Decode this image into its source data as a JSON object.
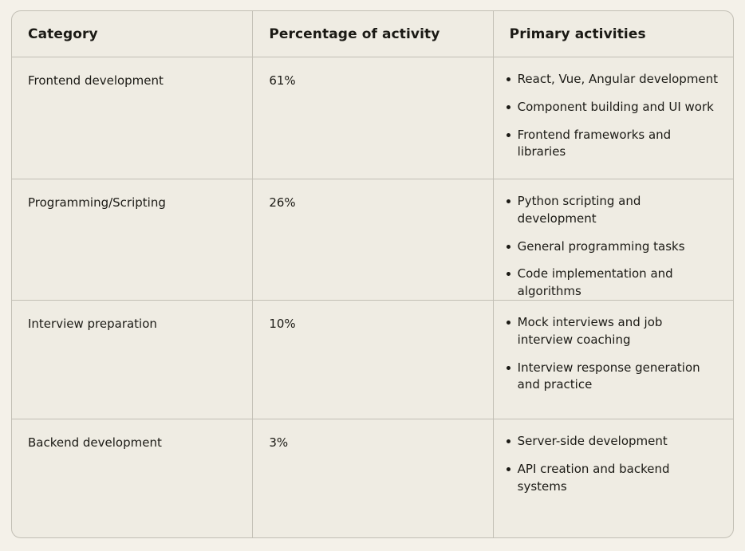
{
  "colors": {
    "page_background": "#f4f1e9",
    "table_background": "#efece3",
    "border": "#c2bfb5",
    "text": "#1b1a15"
  },
  "table": {
    "headers": [
      "Category",
      "Percentage of activity",
      "Primary activities"
    ],
    "rows": [
      {
        "category": "Frontend development",
        "percentage": "61%",
        "activities": [
          "React, Vue, Angular development",
          "Component building and UI work",
          "Frontend frameworks and libraries"
        ]
      },
      {
        "category": "Programming/Scripting",
        "percentage": "26%",
        "activities": [
          "Python scripting and development",
          "General programming tasks",
          "Code implementation and algorithms"
        ]
      },
      {
        "category": "Interview preparation",
        "percentage": "10%",
        "activities": [
          "Mock interviews and job interview coaching",
          "Interview response generation and practice"
        ]
      },
      {
        "category": "Backend development",
        "percentage": "3%",
        "activities": [
          "Server-side development",
          "API creation and backend systems"
        ]
      }
    ]
  },
  "chart_data": {
    "type": "table",
    "title": "",
    "columns": [
      "Category",
      "Percentage of activity",
      "Primary activities"
    ],
    "categories": [
      "Frontend development",
      "Programming/Scripting",
      "Interview preparation",
      "Backend development"
    ],
    "values": [
      61,
      26,
      10,
      3
    ],
    "value_unit": "%",
    "notes": "Each row lists primary activities as bullet points"
  }
}
